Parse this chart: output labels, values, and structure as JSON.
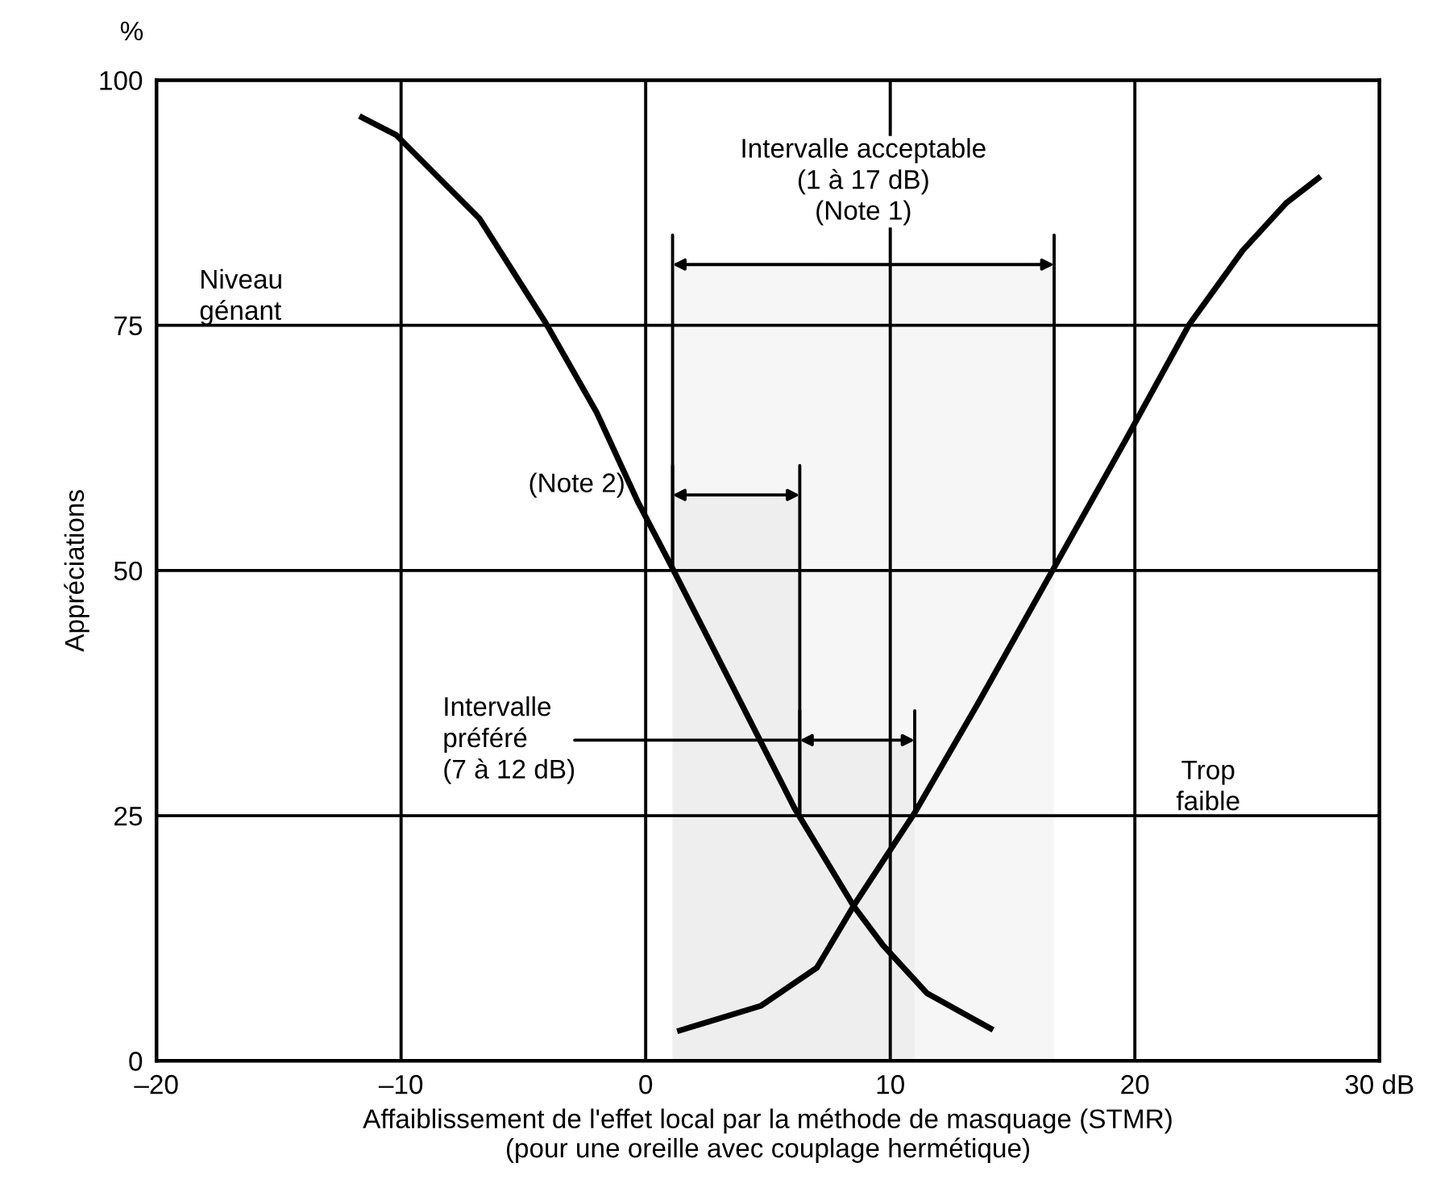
{
  "chart_data": {
    "type": "line",
    "xlabel": "Affaiblissement de l'effet local par la méthode de masquage (STMR)\n(pour une oreille avec couplage hermétique)",
    "ylabel": "Appréciations",
    "series": [
      {
        "color": "#000000",
        "x": [
          -11.6,
          -10.2,
          -6.8,
          -4.1,
          -2.0,
          -0.3,
          1.0,
          6.1,
          8.5,
          9.7,
          11.5,
          14.1
        ],
        "values": [
          96.2,
          94.4,
          85.9,
          75.3,
          66.1,
          56.9,
          50.7,
          25.7,
          15.8,
          11.8,
          6.9,
          3.3
        ]
      },
      {
        "color": "#000000",
        "x": [
          1.4,
          4.7,
          7.0,
          8.5,
          11.0,
          13.6,
          16.7,
          19.6,
          22.2,
          24.4,
          26.2,
          27.5
        ],
        "values": [
          3.1,
          5.6,
          9.5,
          15.8,
          25.3,
          36.5,
          50.3,
          63.2,
          75.0,
          82.6,
          87.5,
          90.0
        ]
      }
    ],
    "xlim": [
      -20,
      30
    ],
    "xticks": [
      {
        "value": -20,
        "label": "–20"
      },
      {
        "value": -10,
        "label": "–10"
      },
      0,
      10,
      20,
      {
        "value": 30,
        "label": "30 dB"
      }
    ],
    "ylim": [
      0,
      100
    ],
    "yticks": [
      0,
      25,
      50,
      75,
      100
    ],
    "grid": true,
    "legend": false,
    "marker": "none",
    "line_style": "solid",
    "bands": [
      {
        "axis": "x",
        "from": 1.1,
        "to": 16.7,
        "label": "Intervalle acceptable\n(1 à 17 dB)\n(Note 1)",
        "color": "#f6f6f6"
      },
      {
        "axis": "x",
        "from": 1.1,
        "to": 6.3,
        "label": "(Note 2)",
        "color": "#eeeeee"
      },
      {
        "axis": "x",
        "from": 6.3,
        "to": 11.0,
        "label": "Intervalle\npréféré\n(7 à 12 dB)",
        "color": "#eeeeee"
      }
    ],
    "annotations": [
      "%",
      "Niveau\ngénant",
      "Trop\nfaible"
    ]
  }
}
